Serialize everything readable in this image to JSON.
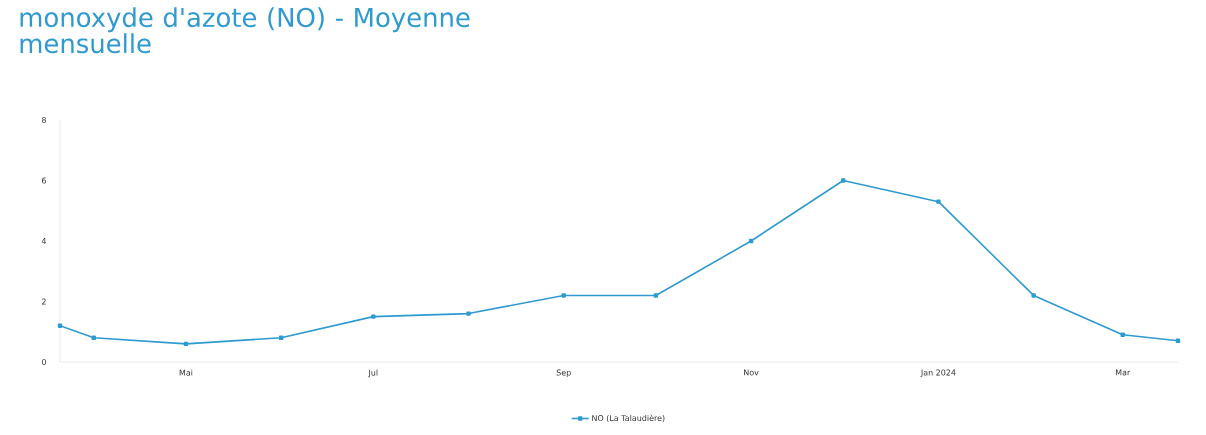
{
  "chart_data": {
    "type": "line",
    "title": "monoxyde d'azote (NO) - Moyenne mensuelle",
    "x": [
      "2023-03-21",
      "2023-04-01",
      "2023-05-01",
      "2023-06-01",
      "2023-07-01",
      "2023-08-01",
      "2023-09-01",
      "2023-10-01",
      "2023-11-01",
      "2023-12-01",
      "2024-01-01",
      "2024-02-01",
      "2024-03-01",
      "2024-03-19"
    ],
    "series": [
      {
        "name": "NO (La Talaudière)",
        "color": "#2e9ad0",
        "values": [
          1.2,
          0.8,
          0.6,
          0.8,
          1.5,
          1.6,
          2.2,
          2.2,
          4.0,
          6.0,
          5.3,
          2.2,
          0.9,
          0.7
        ]
      }
    ],
    "xlim": [
      "2023-03-21",
      "2024-03-19"
    ],
    "xticks": [
      {
        "value": "2023-05-01",
        "label": "Mai"
      },
      {
        "value": "2023-07-01",
        "label": "Jul"
      },
      {
        "value": "2023-09-01",
        "label": "Sep"
      },
      {
        "value": "2023-11-01",
        "label": "Nov"
      },
      {
        "value": "2024-01-01",
        "label": "Jan 2024"
      },
      {
        "value": "2024-03-01",
        "label": "Mar"
      }
    ],
    "ylim": [
      0,
      8
    ],
    "yticks": [
      0,
      2,
      4,
      6,
      8
    ],
    "grid": false,
    "legend": "bottom",
    "marker": "square",
    "line_style": "solid"
  }
}
